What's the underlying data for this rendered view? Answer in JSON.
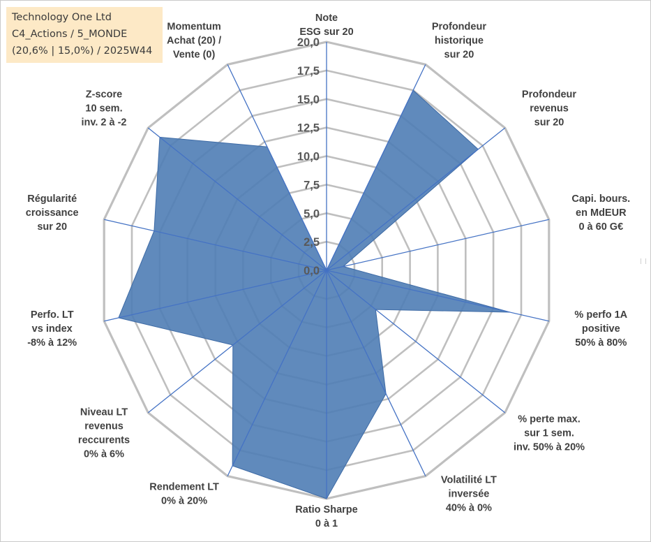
{
  "info": {
    "company": "Technology One Ltd",
    "category": "C4_Actions / 5_MONDE",
    "stats": "(20,6% | 15,0%) / 2025W44"
  },
  "colors": {
    "fill": "#4f7db5",
    "fill_edge": "#3d6aa5",
    "spoke": "#4472c4",
    "grid": "#bfbfbf",
    "info_bg": "#fde9c6"
  },
  "chart_data": {
    "type": "radar",
    "title": "",
    "rmin": 0,
    "rmax": 20,
    "tick_step": 2.5,
    "tick_labels": [
      "0,0",
      "2,5",
      "5,0",
      "7,5",
      "10,0",
      "12,5",
      "15,0",
      "17,5",
      "20,0"
    ],
    "axes": [
      {
        "lines": [
          "Note",
          "ESG sur 20"
        ],
        "value": 0
      },
      {
        "lines": [
          "Profondeur",
          "historique",
          "sur 20"
        ],
        "value": 17.5
      },
      {
        "lines": [
          "Profondeur",
          "revenus",
          "sur 20"
        ],
        "value": 17.0
      },
      {
        "lines": [
          "Capi. bours.",
          "en MdEUR",
          "0 à 60 G€"
        ],
        "value": 1.5
      },
      {
        "lines": [
          "% perfo 1A",
          "positive",
          "50% à 80%"
        ],
        "value": 16.5
      },
      {
        "lines": [
          "% perte max.",
          "sur 1 sem.",
          "inv. 50% à 20%"
        ],
        "value": 5.5
      },
      {
        "lines": [
          "Volatilité LT",
          "inversée",
          "40% à 0%"
        ],
        "value": 12.0
      },
      {
        "lines": [
          "Ratio Sharpe",
          "0 à 1"
        ],
        "value": 20.0
      },
      {
        "lines": [
          "Rendement LT",
          "0% à 20%"
        ],
        "value": 19.0
      },
      {
        "lines": [
          "Niveau LT",
          "revenus",
          "reccurents",
          "0% à 6%"
        ],
        "value": 10.5
      },
      {
        "lines": [
          "Perfo. LT",
          "vs index",
          "-8% à 12%"
        ],
        "value": 18.7
      },
      {
        "lines": [
          "Régularité",
          "croissance",
          "sur 20"
        ],
        "value": 15.5
      },
      {
        "lines": [
          "Z-score",
          "10 sem.",
          "inv. 2 à -2"
        ],
        "value": 18.7
      },
      {
        "lines": [
          "Momentum",
          "Achat (20) /",
          "Vente (0)"
        ],
        "value": 12.0
      }
    ]
  }
}
